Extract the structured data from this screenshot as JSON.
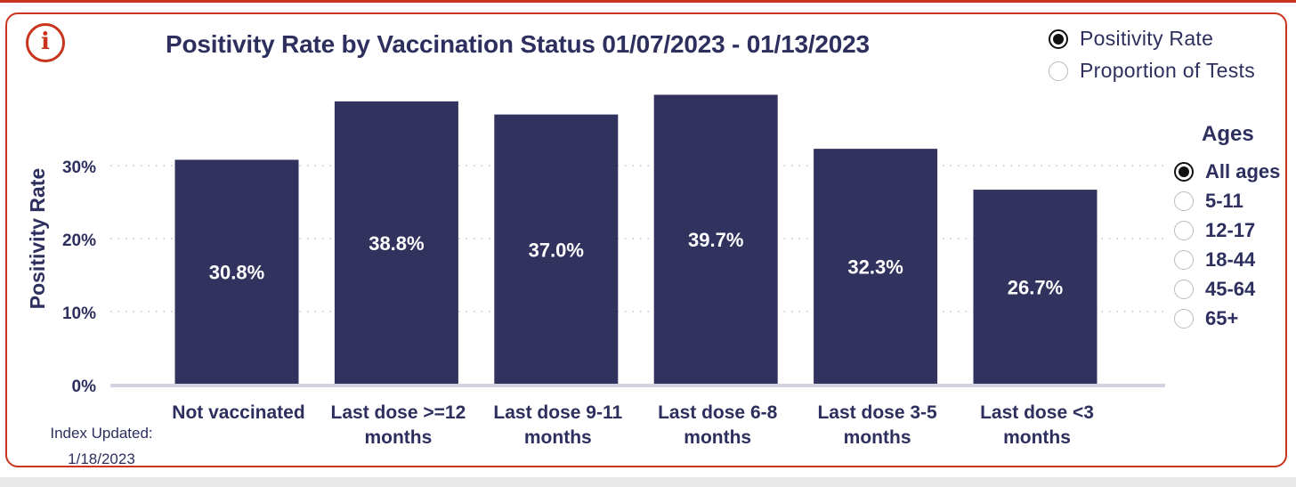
{
  "header": {
    "title": "Positivity Rate by Vaccination Status 01/07/2023 - 01/13/2023"
  },
  "metric_toggle": {
    "options": [
      {
        "label": "Positivity Rate",
        "selected": true
      },
      {
        "label": "Proportion of Tests",
        "selected": false
      }
    ]
  },
  "ages_filter": {
    "title": "Ages",
    "options": [
      {
        "label": "All ages",
        "selected": true
      },
      {
        "label": "5-11",
        "selected": false
      },
      {
        "label": "12-17",
        "selected": false
      },
      {
        "label": "18-44",
        "selected": false
      },
      {
        "label": "45-64",
        "selected": false
      },
      {
        "label": "65+",
        "selected": false
      }
    ]
  },
  "footer": {
    "index_updated_label": "Index Updated:",
    "index_updated_date": "1/18/2023"
  },
  "colors": {
    "bar": "#32325f",
    "accent": "#c8341c",
    "text": "#2d2f5e"
  },
  "icons": {
    "info": "info-icon"
  },
  "chart_data": {
    "type": "bar",
    "title": "Positivity Rate by Vaccination Status 01/07/2023 - 01/13/2023",
    "ylabel": "Positivity Rate",
    "xlabel": "",
    "categories": [
      [
        "Not vaccinated"
      ],
      [
        "Last dose >=12",
        "months"
      ],
      [
        "Last dose 9-11",
        "months"
      ],
      [
        "Last dose 6-8",
        "months"
      ],
      [
        "Last dose 3-5",
        "months"
      ],
      [
        "Last dose <3",
        "months"
      ]
    ],
    "values": [
      30.8,
      38.8,
      37.0,
      39.7,
      32.3,
      26.7
    ],
    "data_labels": [
      "30.8%",
      "38.8%",
      "37.0%",
      "39.7%",
      "32.3%",
      "26.7%"
    ],
    "ylim": [
      0,
      40
    ],
    "yticks": [
      0,
      10,
      20,
      30
    ],
    "ytick_labels": [
      "0%",
      "10%",
      "20%",
      "30%"
    ],
    "grid": true
  }
}
